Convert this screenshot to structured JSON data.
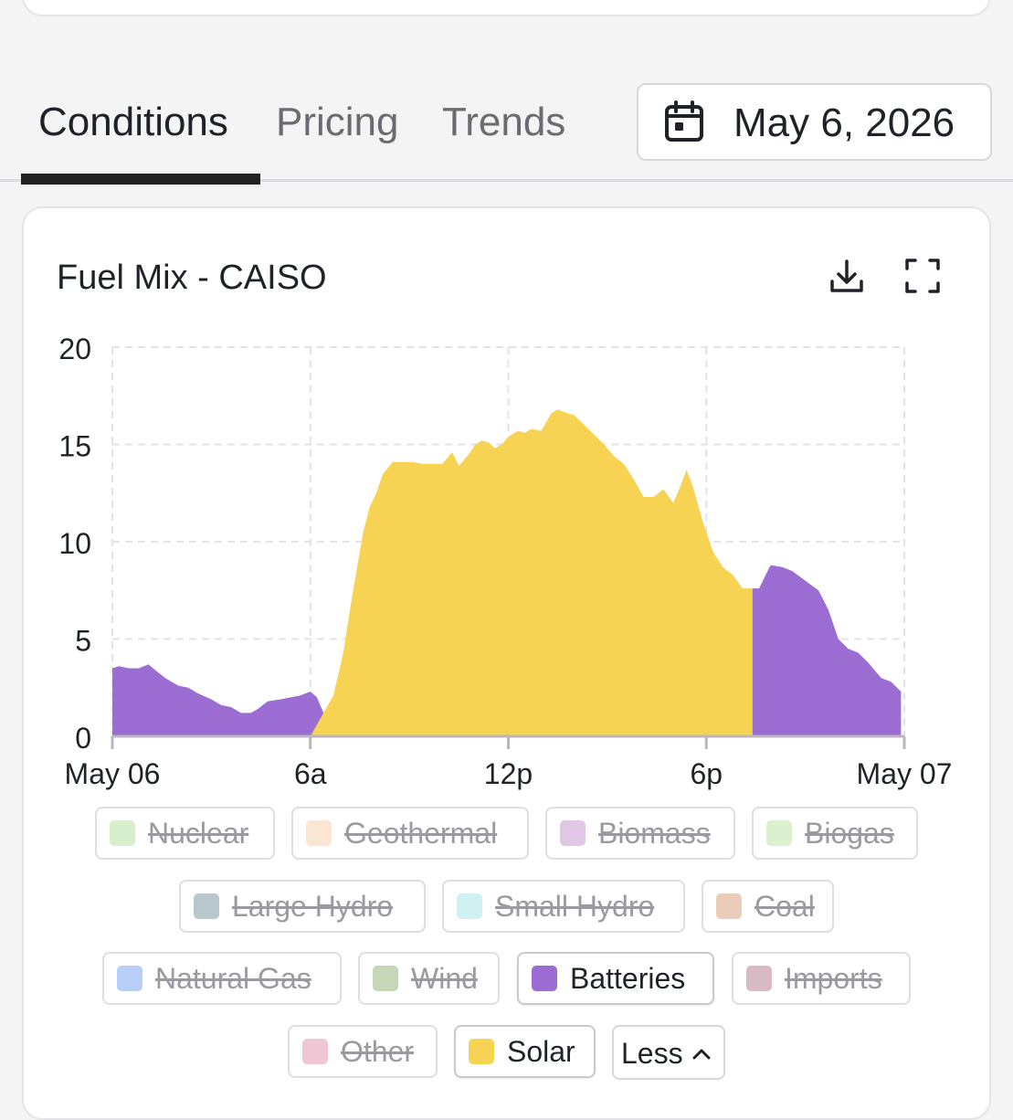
{
  "tabs": [
    {
      "label": "Conditions",
      "active": true
    },
    {
      "label": "Pricing",
      "active": false
    },
    {
      "label": "Trends",
      "active": false
    }
  ],
  "date_picker": {
    "icon": "calendar-icon",
    "value": "May 6, 2026"
  },
  "chart_card": {
    "title": "Fuel Mix - CAISO",
    "download_icon": "download-icon",
    "fullscreen_icon": "fullscreen-icon"
  },
  "chart_data": {
    "type": "area",
    "title": "Fuel Mix - CAISO",
    "xlabel": "",
    "ylabel": "",
    "ylim": [
      0,
      20
    ],
    "yticks": [
      "0",
      "5",
      "10",
      "15",
      "20"
    ],
    "xticks": [
      "May 06",
      "6a",
      "12p",
      "6p",
      "May 07"
    ],
    "xlim_hours": [
      0,
      24
    ],
    "grid": true,
    "series": [
      {
        "name": "Batteries",
        "color": "#9b6dd3",
        "points": [
          [
            0,
            3.5
          ],
          [
            0.2,
            3.6
          ],
          [
            0.5,
            3.5
          ],
          [
            0.8,
            3.5
          ],
          [
            1.1,
            3.7
          ],
          [
            1.3,
            3.4
          ],
          [
            1.6,
            3.0
          ],
          [
            2.0,
            2.6
          ],
          [
            2.3,
            2.5
          ],
          [
            2.6,
            2.2
          ],
          [
            3.0,
            1.9
          ],
          [
            3.3,
            1.6
          ],
          [
            3.6,
            1.5
          ],
          [
            3.9,
            1.2
          ],
          [
            4.2,
            1.2
          ],
          [
            4.4,
            1.4
          ],
          [
            4.7,
            1.8
          ],
          [
            5.1,
            1.9
          ],
          [
            5.4,
            2.0
          ],
          [
            5.7,
            2.1
          ],
          [
            6.0,
            2.3
          ],
          [
            6.2,
            2.0
          ],
          [
            6.5,
            0.8
          ],
          [
            6.75,
            0
          ],
          [
            18.0,
            0
          ],
          [
            18.25,
            0
          ],
          [
            18.45,
            2.0
          ],
          [
            18.7,
            5.5
          ],
          [
            19.0,
            7.3
          ],
          [
            19.4,
            7.6
          ],
          [
            19.6,
            7.6
          ],
          [
            19.8,
            8.3
          ],
          [
            19.95,
            8.8
          ],
          [
            20.3,
            8.7
          ],
          [
            20.6,
            8.5
          ],
          [
            21.0,
            8.0
          ],
          [
            21.4,
            7.5
          ],
          [
            21.7,
            6.5
          ],
          [
            22.0,
            5.0
          ],
          [
            22.3,
            4.5
          ],
          [
            22.6,
            4.3
          ],
          [
            22.9,
            3.8
          ],
          [
            23.3,
            3.0
          ],
          [
            23.6,
            2.8
          ],
          [
            23.9,
            2.3
          ]
        ]
      },
      {
        "name": "Solar",
        "color": "#f6d352",
        "points": [
          [
            6.0,
            0
          ],
          [
            6.3,
            0.9
          ],
          [
            6.7,
            2.1
          ],
          [
            7.0,
            4.3
          ],
          [
            7.2,
            6.5
          ],
          [
            7.4,
            8.5
          ],
          [
            7.6,
            10.5
          ],
          [
            7.8,
            11.8
          ],
          [
            8.0,
            12.5
          ],
          [
            8.2,
            13.5
          ],
          [
            8.5,
            14.1
          ],
          [
            8.8,
            14.1
          ],
          [
            9.1,
            14.1
          ],
          [
            9.4,
            14.0
          ],
          [
            9.7,
            14.0
          ],
          [
            10.0,
            14.0
          ],
          [
            10.3,
            14.6
          ],
          [
            10.5,
            13.9
          ],
          [
            10.8,
            14.5
          ],
          [
            11.0,
            15.0
          ],
          [
            11.2,
            15.2
          ],
          [
            11.4,
            15.1
          ],
          [
            11.6,
            14.8
          ],
          [
            11.8,
            15.0
          ],
          [
            12.0,
            15.4
          ],
          [
            12.3,
            15.7
          ],
          [
            12.5,
            15.6
          ],
          [
            12.7,
            15.8
          ],
          [
            13.0,
            15.7
          ],
          [
            13.3,
            16.6
          ],
          [
            13.5,
            16.8
          ],
          [
            13.8,
            16.6
          ],
          [
            14.0,
            16.5
          ],
          [
            14.3,
            16.0
          ],
          [
            14.6,
            15.5
          ],
          [
            14.9,
            15.0
          ],
          [
            15.2,
            14.4
          ],
          [
            15.5,
            14.0
          ],
          [
            15.8,
            13.2
          ],
          [
            16.1,
            12.3
          ],
          [
            16.4,
            12.3
          ],
          [
            16.7,
            12.7
          ],
          [
            17.0,
            12.0
          ],
          [
            17.2,
            12.8
          ],
          [
            17.4,
            13.7
          ],
          [
            17.6,
            12.8
          ],
          [
            17.9,
            11.0
          ],
          [
            18.2,
            9.5
          ],
          [
            18.5,
            8.7
          ],
          [
            18.8,
            8.3
          ],
          [
            19.1,
            7.6
          ],
          [
            19.4,
            7.6
          ]
        ]
      }
    ]
  },
  "legend": [
    {
      "label": "Nuclear",
      "color": "#b9e3a1",
      "enabled": false
    },
    {
      "label": "Geothermal",
      "color": "#f8d2b2",
      "enabled": false
    },
    {
      "label": "Biomass",
      "color": "#c79bd1",
      "enabled": false
    },
    {
      "label": "Biogas",
      "color": "#bfe4a6",
      "enabled": false
    },
    {
      "label": "Large Hydro",
      "color": "#7e9aa3",
      "enabled": false
    },
    {
      "label": "Small Hydro",
      "color": "#a8e6e6",
      "enabled": false
    },
    {
      "label": "Coal",
      "color": "#d8a583",
      "enabled": false
    },
    {
      "label": "Natural Gas",
      "color": "#7fa7ef",
      "enabled": false
    },
    {
      "label": "Wind",
      "color": "#97b87f",
      "enabled": false
    },
    {
      "label": "Batteries",
      "color": "#9b6dd3",
      "enabled": true
    },
    {
      "label": "Imports",
      "color": "#b98396",
      "enabled": false
    },
    {
      "label": "Other",
      "color": "#e39ab1",
      "enabled": false
    },
    {
      "label": "Solar",
      "color": "#f6d352",
      "enabled": true
    }
  ],
  "legend_toggle": {
    "label": "Less",
    "icon": "chevron-up-icon"
  }
}
